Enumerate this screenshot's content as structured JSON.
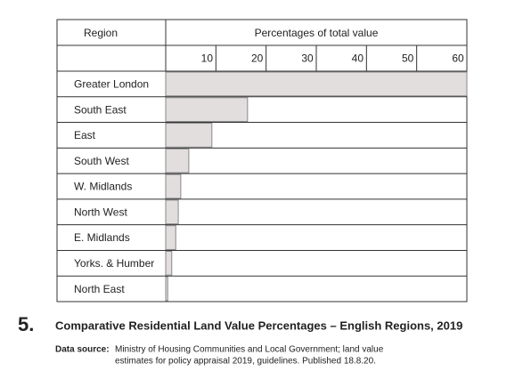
{
  "chart_data": {
    "type": "bar",
    "orientation": "horizontal",
    "figure_number": "5.",
    "title": "Comparative Residential Land Value Percentages – English Regions, 2019",
    "category_header": "Region",
    "value_header": "Percentages of total value",
    "categories": [
      "Greater London",
      "South East",
      "East",
      "South West",
      "W. Midlands",
      "North West",
      "E. Midlands",
      "Yorks. & Humber",
      "North East"
    ],
    "values": [
      60,
      16.3,
      9.2,
      4.6,
      3,
      2.5,
      2,
      1.2,
      0.4
    ],
    "color": "#e2dede",
    "xlim": [
      0,
      60
    ],
    "xticks": [
      10,
      20,
      30,
      40,
      50,
      60
    ],
    "source_label": "Data source:",
    "source_lines": [
      "Ministry of Housing Communities and Local Government;  land value",
      "estimates for policy appraisal 2019, guidelines. Published 18.8.20."
    ]
  }
}
